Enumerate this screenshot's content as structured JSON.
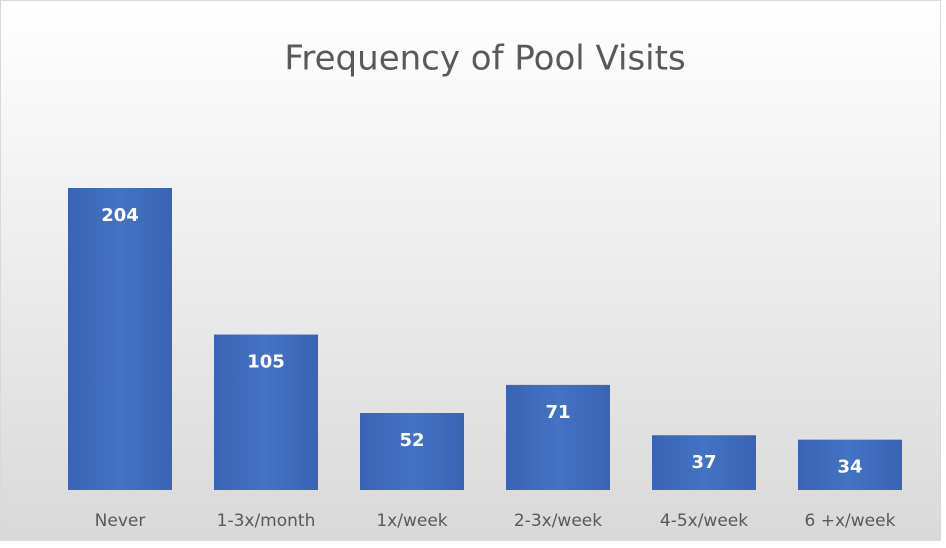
{
  "chart_data": {
    "type": "bar",
    "title": "Frequency of Pool Visits",
    "categories": [
      "Never",
      "1-3x/month",
      "1x/week",
      "2-3x/week",
      "4-5x/week",
      "6 +x/week"
    ],
    "values": [
      204,
      105,
      52,
      71,
      37,
      34
    ],
    "color": "#4472c4"
  }
}
